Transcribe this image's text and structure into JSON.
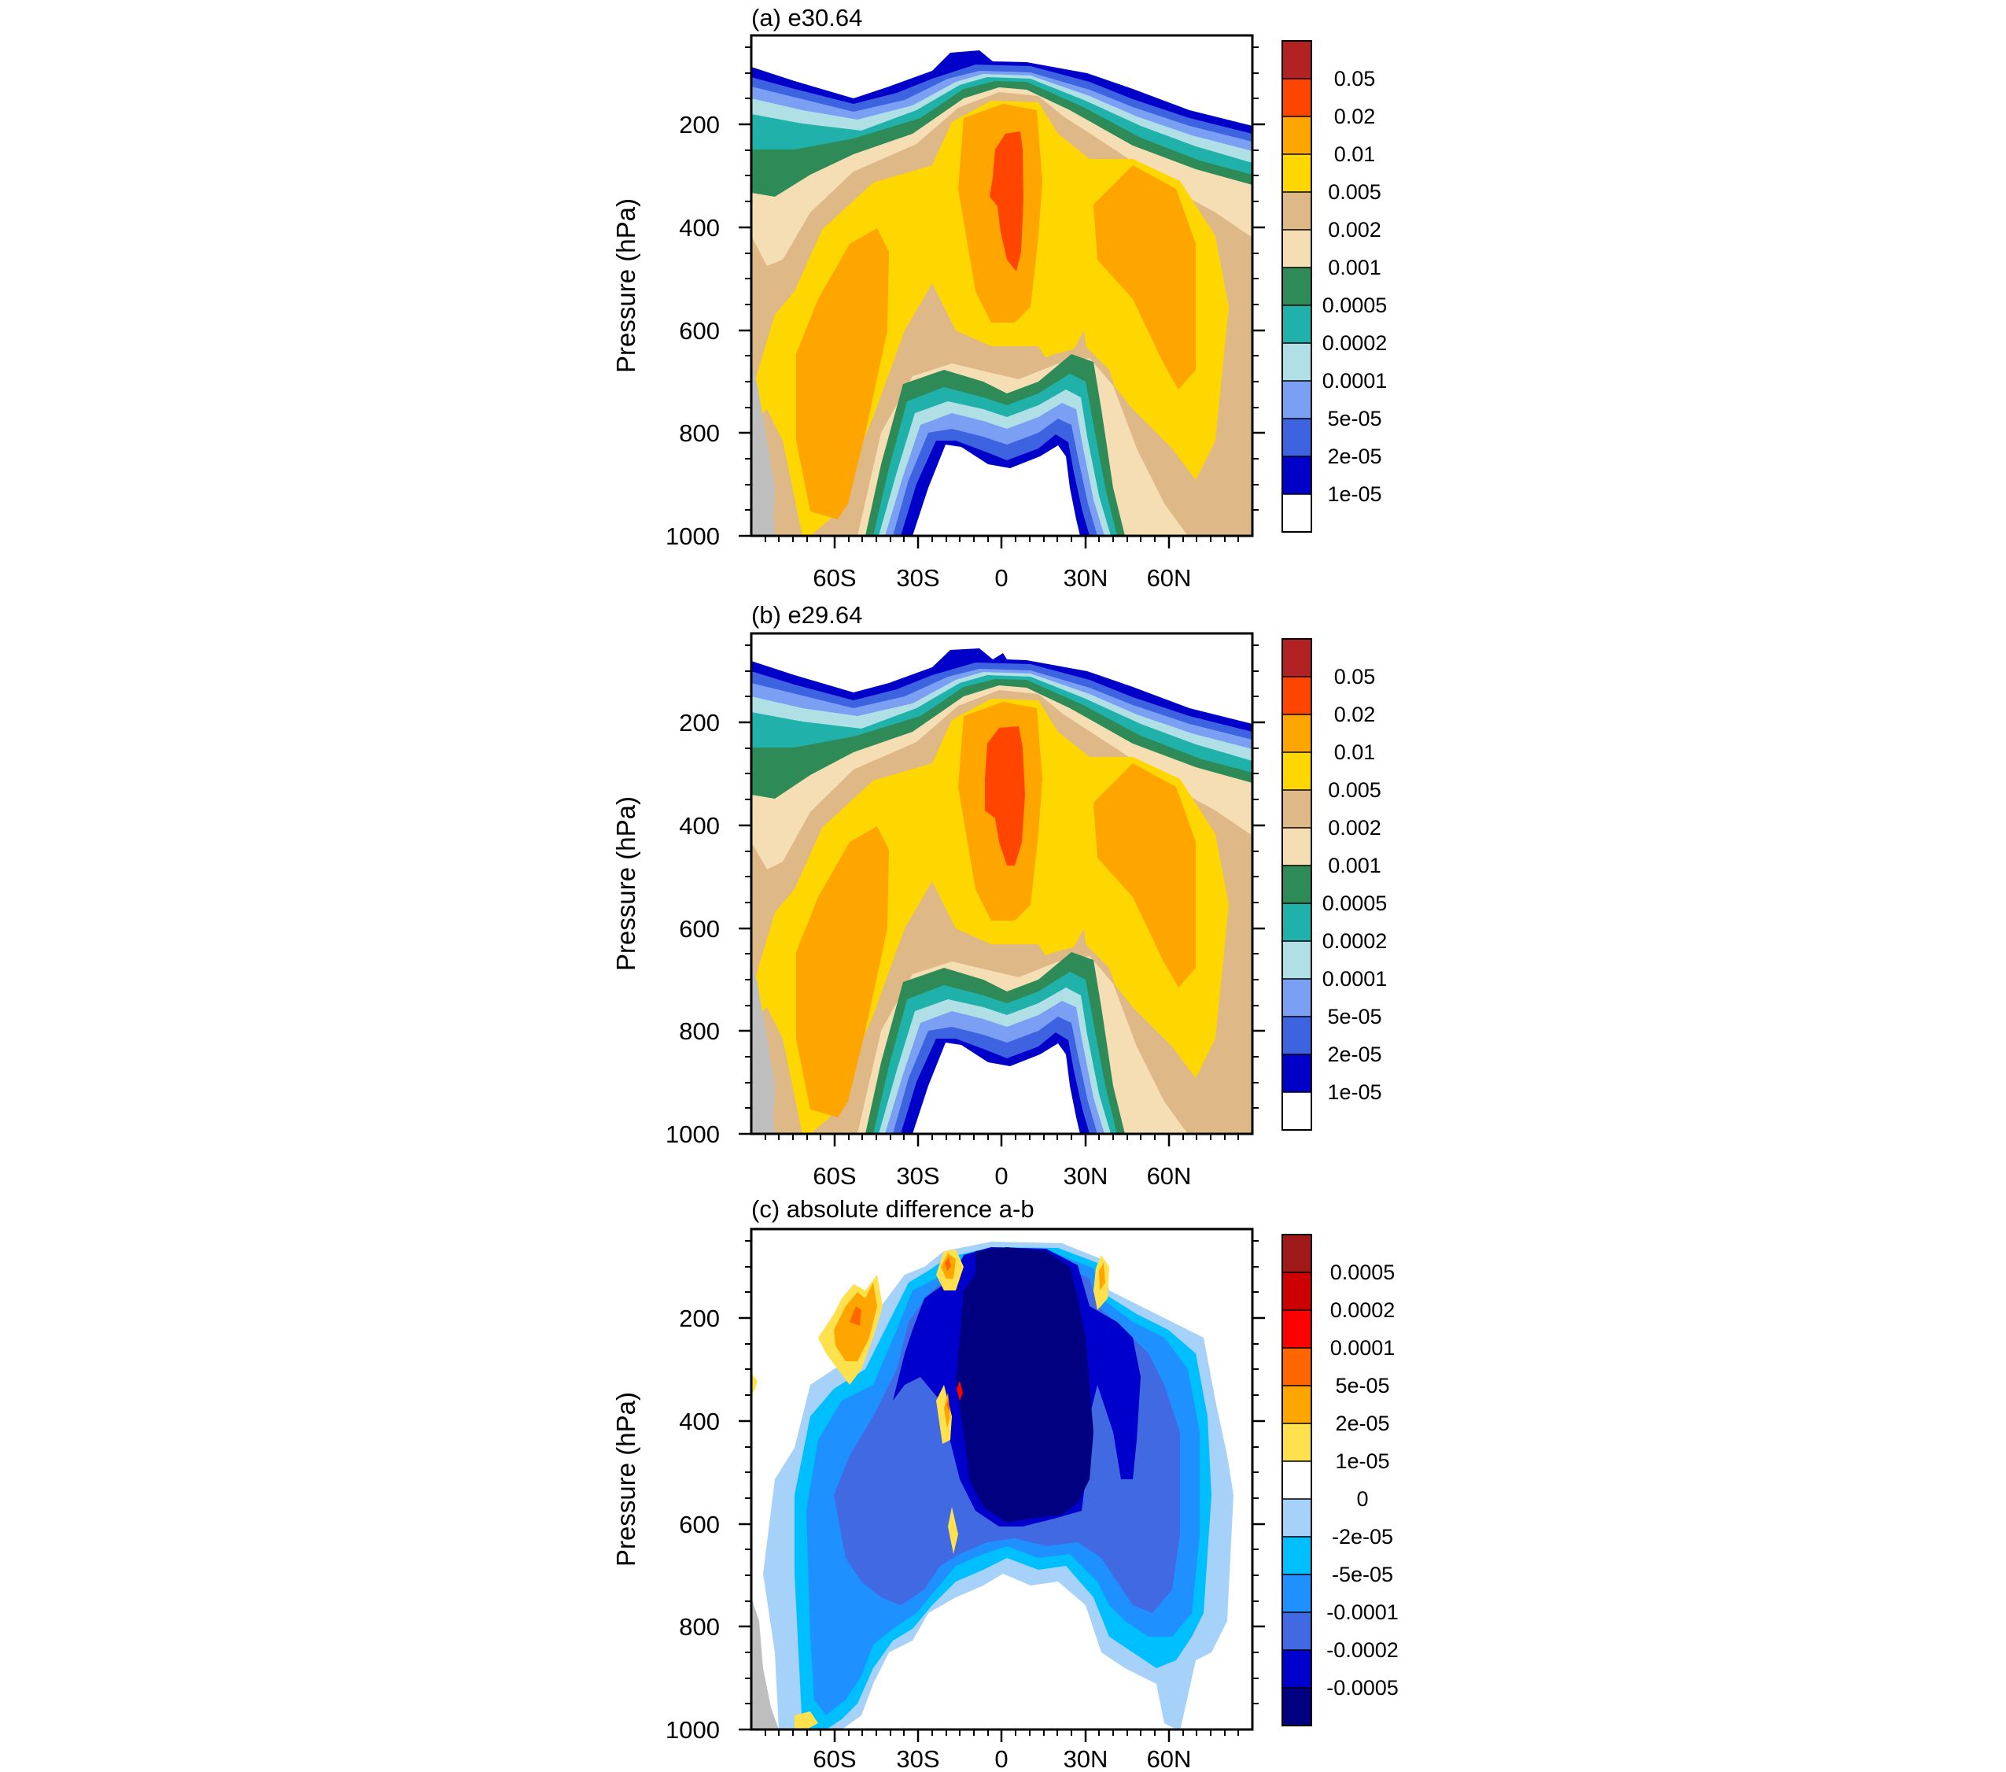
{
  "chart_data": [
    {
      "type": "heatmap",
      "title": "(a) e30.64",
      "ylabel": "Pressure (hPa)",
      "xlabel": "",
      "x_ticks": [
        {
          "label": "60S",
          "lat": -60
        },
        {
          "label": "30S",
          "lat": -30
        },
        {
          "label": "0",
          "lat": 0
        },
        {
          "label": "30N",
          "lat": 30
        },
        {
          "label": "60N",
          "lat": 60
        }
      ],
      "y_ticks": [
        200,
        400,
        600,
        800,
        1000
      ],
      "xlim": [
        -90,
        90
      ],
      "ylim": [
        1000,
        25
      ],
      "y_reversed": true,
      "levels": [
        "1e-05",
        "2e-05",
        "5e-05",
        "0.0001",
        "0.0002",
        "0.0005",
        "0.001",
        "0.002",
        "0.005",
        "0.01",
        "0.02",
        "0.05"
      ],
      "colors": [
        "#ffffff",
        "#0000c8",
        "#3d63e0",
        "#7b9ff2",
        "#b0e0e6",
        "#20b2aa",
        "#2e8b57",
        "#f5deb3",
        "#deb887",
        "#ffd700",
        "#ffa500",
        "#ff4500",
        "#b22222"
      ],
      "missing_color": "#bebebe"
    },
    {
      "type": "heatmap",
      "title": "(b) e29.64",
      "ylabel": "Pressure (hPa)",
      "xlabel": "",
      "x_ticks": [
        {
          "label": "60S",
          "lat": -60
        },
        {
          "label": "30S",
          "lat": -30
        },
        {
          "label": "0",
          "lat": 0
        },
        {
          "label": "30N",
          "lat": 30
        },
        {
          "label": "60N",
          "lat": 60
        }
      ],
      "y_ticks": [
        200,
        400,
        600,
        800,
        1000
      ],
      "xlim": [
        -90,
        90
      ],
      "ylim": [
        1000,
        25
      ],
      "y_reversed": true,
      "levels": [
        "1e-05",
        "2e-05",
        "5e-05",
        "0.0001",
        "0.0002",
        "0.0005",
        "0.001",
        "0.002",
        "0.005",
        "0.01",
        "0.02",
        "0.05"
      ],
      "colors": [
        "#ffffff",
        "#0000c8",
        "#3d63e0",
        "#7b9ff2",
        "#b0e0e6",
        "#20b2aa",
        "#2e8b57",
        "#f5deb3",
        "#deb887",
        "#ffd700",
        "#ffa500",
        "#ff4500",
        "#b22222"
      ],
      "missing_color": "#bebebe"
    },
    {
      "type": "heatmap",
      "title": "(c) absolute difference a-b",
      "ylabel": "Pressure (hPa)",
      "xlabel": "",
      "x_ticks": [
        {
          "label": "60S",
          "lat": -60
        },
        {
          "label": "30S",
          "lat": -30
        },
        {
          "label": "0",
          "lat": 0
        },
        {
          "label": "30N",
          "lat": 30
        },
        {
          "label": "60N",
          "lat": 60
        }
      ],
      "y_ticks": [
        200,
        400,
        600,
        800,
        1000
      ],
      "xlim": [
        -90,
        90
      ],
      "ylim": [
        1000,
        25
      ],
      "y_reversed": true,
      "levels": [
        "-0.0005",
        "-0.0002",
        "-0.0001",
        "-5e-05",
        "-2e-05",
        "0",
        "1e-05",
        "2e-05",
        "5e-05",
        "0.0001",
        "0.0002",
        "0.0005"
      ],
      "colors": [
        "#000080",
        "#0000cd",
        "#4169e1",
        "#1e90ff",
        "#00bfff",
        "#a6d1f8",
        "#ffffff",
        "#ffe14d",
        "#ffa500",
        "#ff6600",
        "#ff0000",
        "#cc0000",
        "#a01a1a"
      ],
      "missing_color": "#bebebe"
    }
  ]
}
